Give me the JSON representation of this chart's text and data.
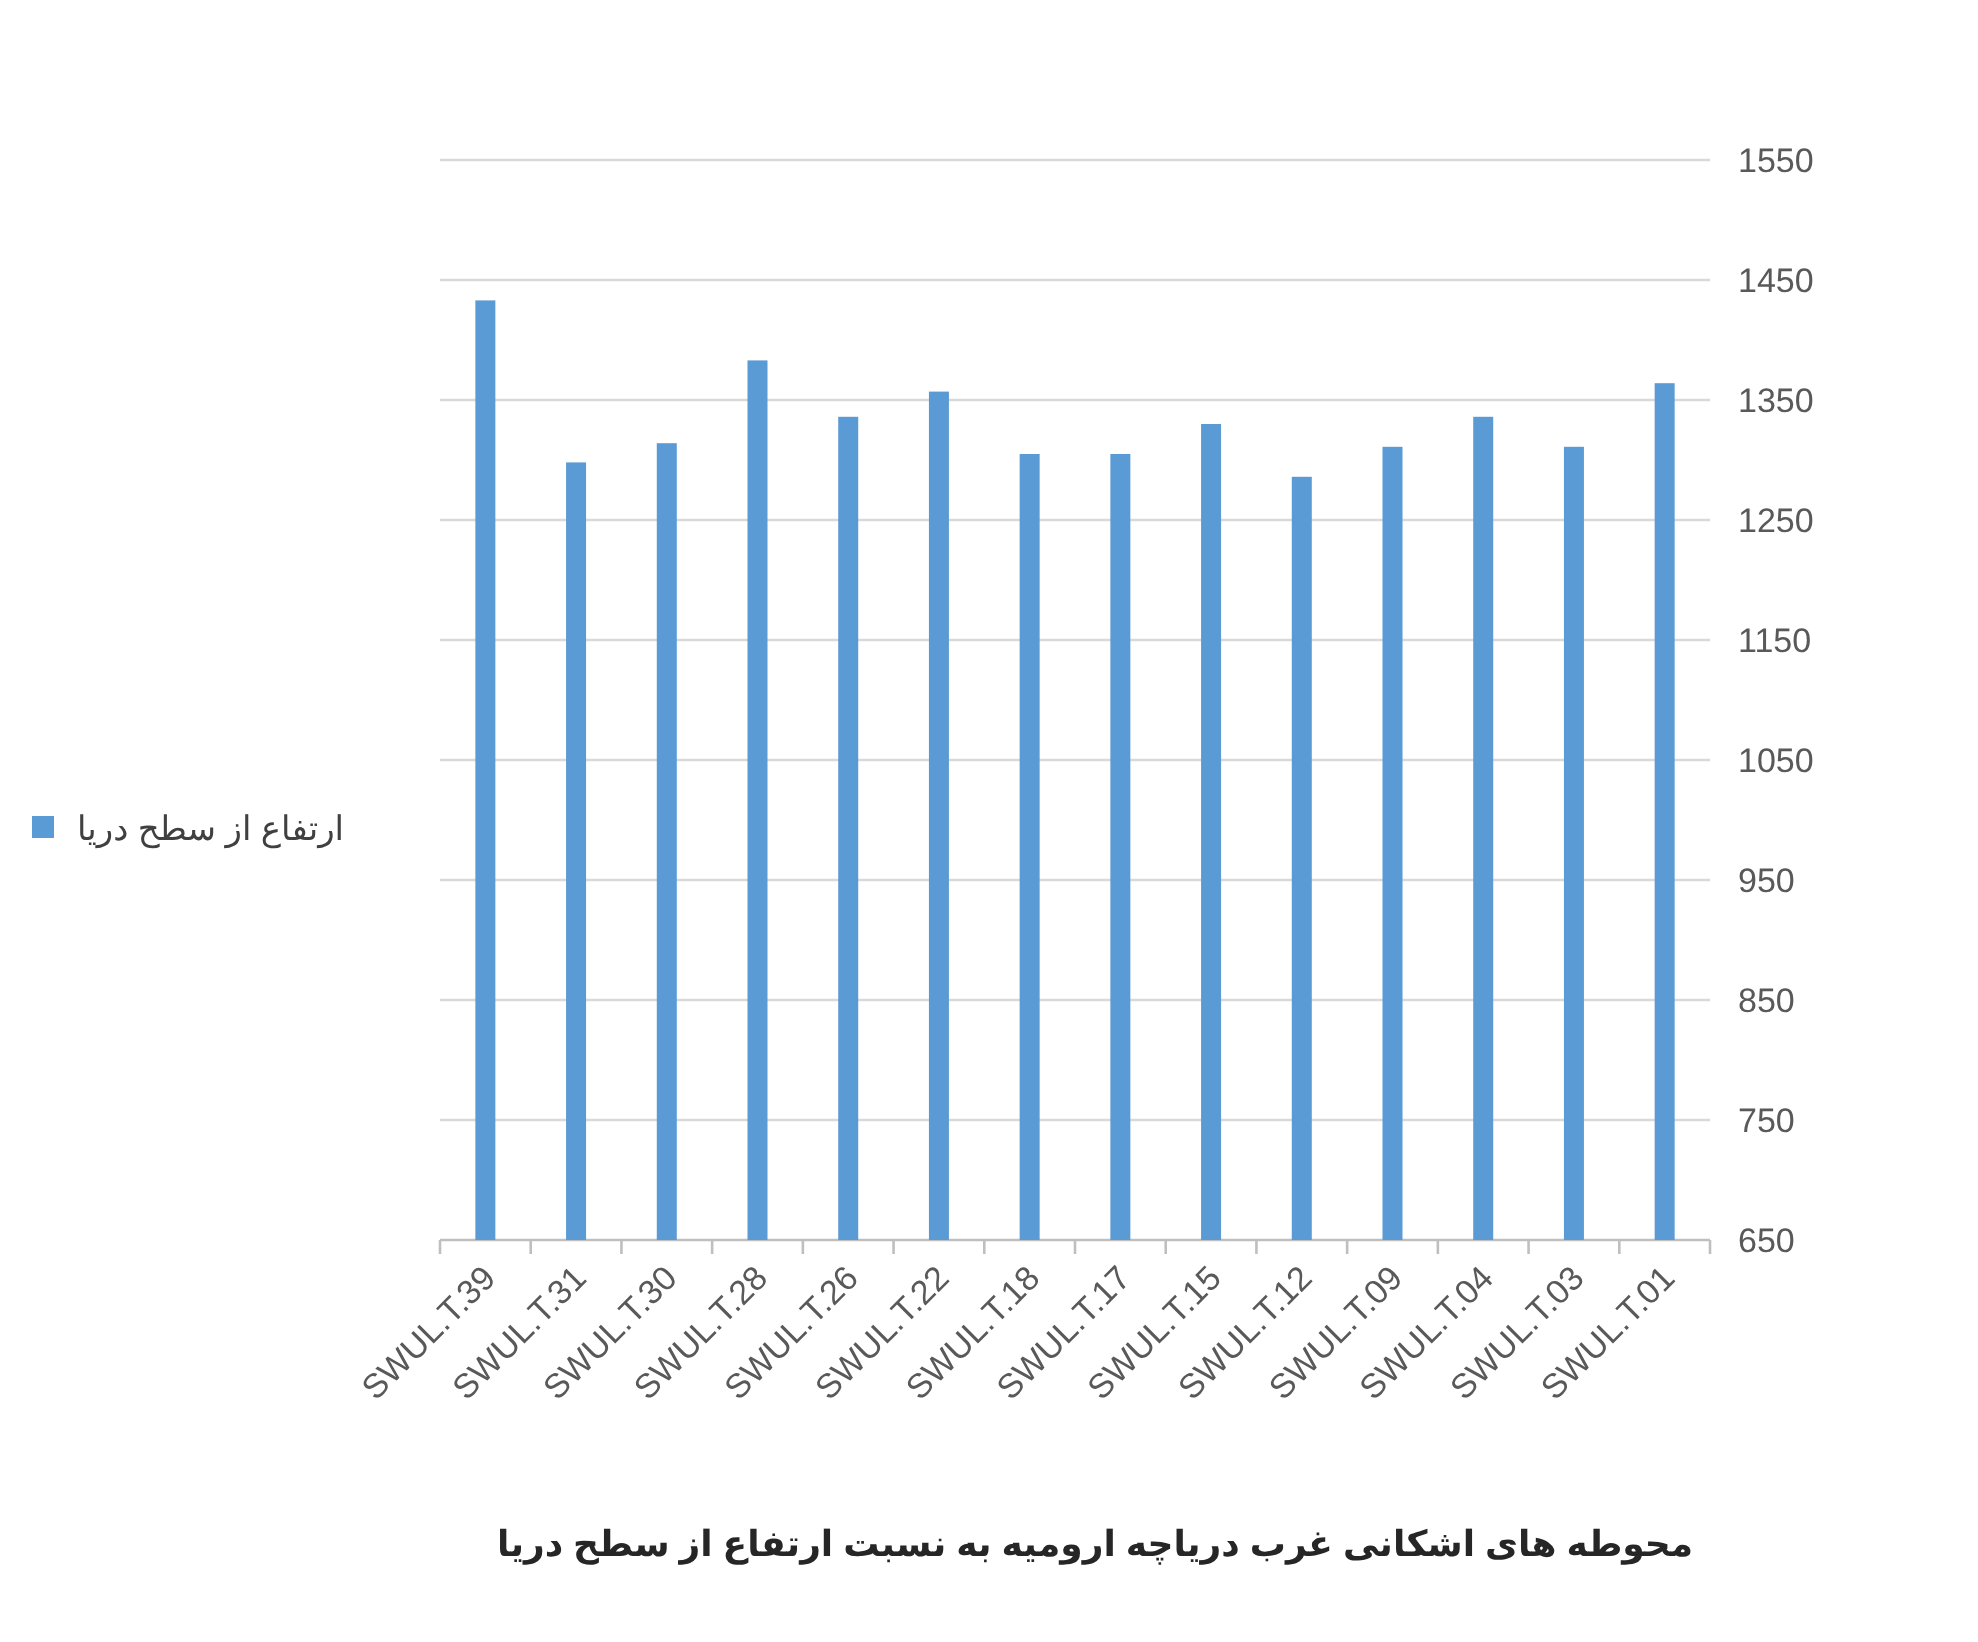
{
  "chart_data": {
    "type": "bar",
    "xlabel": "محوطه های اشکانی غرب دریاچه ارومیه به نسبت ارتفاع از سطح دریا",
    "categories": [
      "SWUL.T.39",
      "SWUL.T.31",
      "SWUL.T.30",
      "SWUL.T.28",
      "SWUL.T.26",
      "SWUL.T.22",
      "SWUL.T.18",
      "SWUL.T.17",
      "SWUL.T.15",
      "SWUL.T.12",
      "SWUL.T.09",
      "SWUL.T.04",
      "SWUL.T.03",
      "SWUL.T.01"
    ],
    "series": [
      {
        "name": "ارتفاع از سطح دریا",
        "color": "#5b9bd5",
        "values": [
          1433,
          1298,
          1314,
          1383,
          1336,
          1357,
          1305,
          1305,
          1330,
          1286,
          1311,
          1336,
          1311,
          1364
        ]
      }
    ],
    "ylim": [
      650,
      1550
    ],
    "yticks": [
      650,
      750,
      850,
      950,
      1050,
      1150,
      1250,
      1350,
      1450,
      1550
    ],
    "grid": "y",
    "legend": "left"
  }
}
